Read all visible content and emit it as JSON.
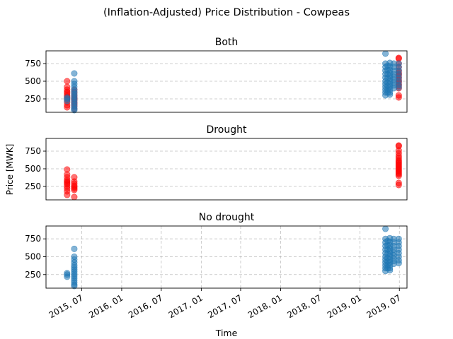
{
  "figure": {
    "title": "(Inflation-Adjusted) Price Distribution - Cowpeas",
    "xlabel": "Time",
    "ylabel": "Price [MWK]"
  },
  "colors": {
    "drought": "#ff0000",
    "no_drought": "#1f77b4",
    "grid": "#b0b0b0"
  },
  "x_ticks": [
    "2015, 07",
    "2016, 01",
    "2016, 07",
    "2017, 01",
    "2017, 07",
    "2018, 01",
    "2018, 07",
    "2019, 01",
    "2019, 07"
  ],
  "y_ticks": [
    "250",
    "500",
    "750"
  ],
  "chart_data": [
    {
      "type": "scatter",
      "title": "Both",
      "xlim": [
        "2015-01-18",
        "2019-08-05"
      ],
      "ylim": [
        60,
        930
      ],
      "grid": {
        "x": false,
        "y": true
      },
      "series": [
        {
          "color": "#ff0000",
          "points": [
            [
              "2015-04-25",
              500
            ],
            [
              "2015-04-25",
              420
            ],
            [
              "2015-04-25",
              380
            ],
            [
              "2015-04-25",
              350
            ],
            [
              "2015-04-25",
              330
            ],
            [
              "2015-04-25",
              300
            ],
            [
              "2015-04-25",
              280
            ],
            [
              "2015-04-25",
              260
            ],
            [
              "2015-04-25",
              240
            ],
            [
              "2015-04-25",
              200
            ],
            [
              "2015-04-25",
              160
            ],
            [
              "2015-04-25",
              130
            ],
            [
              "2015-05-28",
              380
            ],
            [
              "2015-05-28",
              340
            ],
            [
              "2015-05-28",
              300
            ],
            [
              "2015-05-28",
              270
            ],
            [
              "2015-05-28",
              250
            ],
            [
              "2015-05-28",
              230
            ],
            [
              "2015-05-28",
              200
            ],
            [
              "2015-05-28",
              180
            ],
            [
              "2015-05-28",
              150
            ],
            [
              "2015-05-28",
              110
            ],
            [
              "2019-06-28",
              830
            ],
            [
              "2019-06-28",
              820
            ],
            [
              "2019-06-28",
              750
            ],
            [
              "2019-06-28",
              700
            ],
            [
              "2019-06-28",
              650
            ],
            [
              "2019-06-28",
              620
            ],
            [
              "2019-06-28",
              600
            ],
            [
              "2019-06-28",
              580
            ],
            [
              "2019-06-28",
              550
            ],
            [
              "2019-06-28",
              520
            ],
            [
              "2019-06-28",
              500
            ],
            [
              "2019-06-28",
              480
            ],
            [
              "2019-06-28",
              450
            ],
            [
              "2019-06-28",
              430
            ],
            [
              "2019-06-28",
              400
            ],
            [
              "2019-06-28",
              300
            ],
            [
              "2019-06-28",
              270
            ]
          ]
        },
        {
          "color": "#1f77b4",
          "points": [
            [
              "2015-04-25",
              270
            ],
            [
              "2015-04-25",
              250
            ],
            [
              "2015-04-25",
              220
            ],
            [
              "2015-05-28",
              610
            ],
            [
              "2015-05-28",
              500
            ],
            [
              "2015-05-28",
              460
            ],
            [
              "2015-05-28",
              420
            ],
            [
              "2015-05-28",
              380
            ],
            [
              "2015-05-28",
              350
            ],
            [
              "2015-05-28",
              320
            ],
            [
              "2015-05-28",
              290
            ],
            [
              "2015-05-28",
              260
            ],
            [
              "2015-05-28",
              230
            ],
            [
              "2015-05-28",
              200
            ],
            [
              "2015-05-28",
              170
            ],
            [
              "2015-05-28",
              140
            ],
            [
              "2015-05-28",
              110
            ],
            [
              "2015-05-28",
              90
            ],
            [
              "2019-04-28",
              890
            ],
            [
              "2019-04-28",
              750
            ],
            [
              "2019-04-28",
              700
            ],
            [
              "2019-04-28",
              650
            ],
            [
              "2019-04-28",
              600
            ],
            [
              "2019-04-28",
              550
            ],
            [
              "2019-04-28",
              500
            ],
            [
              "2019-04-28",
              460
            ],
            [
              "2019-04-28",
              420
            ],
            [
              "2019-04-28",
              380
            ],
            [
              "2019-04-28",
              340
            ],
            [
              "2019-04-28",
              300
            ],
            [
              "2019-05-08",
              720
            ],
            [
              "2019-05-08",
              660
            ],
            [
              "2019-05-08",
              600
            ],
            [
              "2019-05-08",
              540
            ],
            [
              "2019-05-08",
              480
            ],
            [
              "2019-05-08",
              430
            ],
            [
              "2019-05-08",
              380
            ],
            [
              "2019-05-08",
              340
            ],
            [
              "2019-05-18",
              760
            ],
            [
              "2019-05-18",
              710
            ],
            [
              "2019-05-18",
              660
            ],
            [
              "2019-05-18",
              620
            ],
            [
              "2019-05-18",
              580
            ],
            [
              "2019-05-18",
              540
            ],
            [
              "2019-05-18",
              500
            ],
            [
              "2019-05-18",
              460
            ],
            [
              "2019-05-18",
              420
            ],
            [
              "2019-05-18",
              380
            ],
            [
              "2019-05-18",
              340
            ],
            [
              "2019-05-18",
              310
            ],
            [
              "2019-06-05",
              750
            ],
            [
              "2019-06-05",
              700
            ],
            [
              "2019-06-05",
              650
            ],
            [
              "2019-06-05",
              600
            ],
            [
              "2019-06-05",
              560
            ],
            [
              "2019-06-05",
              520
            ],
            [
              "2019-06-05",
              480
            ],
            [
              "2019-06-05",
              440
            ],
            [
              "2019-06-05",
              400
            ],
            [
              "2019-06-28",
              750
            ],
            [
              "2019-06-28",
              700
            ],
            [
              "2019-06-28",
              650
            ],
            [
              "2019-06-28",
              600
            ],
            [
              "2019-06-28",
              550
            ],
            [
              "2019-06-28",
              500
            ],
            [
              "2019-06-28",
              450
            ],
            [
              "2019-06-28",
              410
            ]
          ]
        }
      ]
    },
    {
      "type": "scatter",
      "title": "Drought",
      "xlim": [
        "2015-01-18",
        "2019-08-05"
      ],
      "ylim": [
        60,
        930
      ],
      "grid": {
        "x": false,
        "y": true
      },
      "series": [
        {
          "color": "#ff0000",
          "points": [
            [
              "2015-04-25",
              490
            ],
            [
              "2015-04-25",
              420
            ],
            [
              "2015-04-25",
              380
            ],
            [
              "2015-04-25",
              340
            ],
            [
              "2015-04-25",
              320
            ],
            [
              "2015-04-25",
              300
            ],
            [
              "2015-04-25",
              280
            ],
            [
              "2015-04-25",
              250
            ],
            [
              "2015-04-25",
              220
            ],
            [
              "2015-04-25",
              180
            ],
            [
              "2015-04-25",
              130
            ],
            [
              "2015-05-28",
              380
            ],
            [
              "2015-05-28",
              320
            ],
            [
              "2015-05-28",
              290
            ],
            [
              "2015-05-28",
              260
            ],
            [
              "2015-05-28",
              240
            ],
            [
              "2015-05-28",
              220
            ],
            [
              "2015-05-28",
              200
            ],
            [
              "2015-05-28",
              100
            ],
            [
              "2019-06-28",
              830
            ],
            [
              "2019-06-28",
              820
            ],
            [
              "2019-06-28",
              760
            ],
            [
              "2019-06-28",
              720
            ],
            [
              "2019-06-28",
              680
            ],
            [
              "2019-06-28",
              650
            ],
            [
              "2019-06-28",
              620
            ],
            [
              "2019-06-28",
              600
            ],
            [
              "2019-06-28",
              580
            ],
            [
              "2019-06-28",
              560
            ],
            [
              "2019-06-28",
              540
            ],
            [
              "2019-06-28",
              520
            ],
            [
              "2019-06-28",
              500
            ],
            [
              "2019-06-28",
              480
            ],
            [
              "2019-06-28",
              460
            ],
            [
              "2019-06-28",
              440
            ],
            [
              "2019-06-28",
              420
            ],
            [
              "2019-06-28",
              400
            ],
            [
              "2019-06-28",
              300
            ],
            [
              "2019-06-28",
              270
            ]
          ]
        }
      ]
    },
    {
      "type": "scatter",
      "title": "No drought",
      "xlim": [
        "2015-01-18",
        "2019-08-05"
      ],
      "ylim": [
        60,
        930
      ],
      "grid": {
        "x": true,
        "y": true
      },
      "series": [
        {
          "color": "#1f77b4",
          "points": [
            [
              "2015-04-25",
              270
            ],
            [
              "2015-04-25",
              250
            ],
            [
              "2015-04-25",
              220
            ],
            [
              "2015-05-28",
              610
            ],
            [
              "2015-05-28",
              500
            ],
            [
              "2015-05-28",
              460
            ],
            [
              "2015-05-28",
              420
            ],
            [
              "2015-05-28",
              380
            ],
            [
              "2015-05-28",
              350
            ],
            [
              "2015-05-28",
              320
            ],
            [
              "2015-05-28",
              290
            ],
            [
              "2015-05-28",
              260
            ],
            [
              "2015-05-28",
              230
            ],
            [
              "2015-05-28",
              200
            ],
            [
              "2015-05-28",
              170
            ],
            [
              "2015-05-28",
              140
            ],
            [
              "2015-05-28",
              110
            ],
            [
              "2015-05-28",
              90
            ],
            [
              "2019-04-28",
              890
            ],
            [
              "2019-04-28",
              750
            ],
            [
              "2019-04-28",
              700
            ],
            [
              "2019-04-28",
              650
            ],
            [
              "2019-04-28",
              600
            ],
            [
              "2019-04-28",
              550
            ],
            [
              "2019-04-28",
              500
            ],
            [
              "2019-04-28",
              460
            ],
            [
              "2019-04-28",
              420
            ],
            [
              "2019-04-28",
              380
            ],
            [
              "2019-04-28",
              340
            ],
            [
              "2019-04-28",
              300
            ],
            [
              "2019-05-08",
              720
            ],
            [
              "2019-05-08",
              660
            ],
            [
              "2019-05-08",
              600
            ],
            [
              "2019-05-08",
              540
            ],
            [
              "2019-05-08",
              480
            ],
            [
              "2019-05-08",
              430
            ],
            [
              "2019-05-08",
              380
            ],
            [
              "2019-05-08",
              340
            ],
            [
              "2019-05-18",
              760
            ],
            [
              "2019-05-18",
              710
            ],
            [
              "2019-05-18",
              660
            ],
            [
              "2019-05-18",
              620
            ],
            [
              "2019-05-18",
              580
            ],
            [
              "2019-05-18",
              540
            ],
            [
              "2019-05-18",
              500
            ],
            [
              "2019-05-18",
              460
            ],
            [
              "2019-05-18",
              420
            ],
            [
              "2019-05-18",
              380
            ],
            [
              "2019-05-18",
              340
            ],
            [
              "2019-05-18",
              310
            ],
            [
              "2019-06-05",
              750
            ],
            [
              "2019-06-05",
              700
            ],
            [
              "2019-06-05",
              650
            ],
            [
              "2019-06-05",
              600
            ],
            [
              "2019-06-05",
              560
            ],
            [
              "2019-06-05",
              520
            ],
            [
              "2019-06-05",
              480
            ],
            [
              "2019-06-05",
              440
            ],
            [
              "2019-06-05",
              400
            ],
            [
              "2019-06-28",
              750
            ],
            [
              "2019-06-28",
              700
            ],
            [
              "2019-06-28",
              650
            ],
            [
              "2019-06-28",
              600
            ],
            [
              "2019-06-28",
              550
            ],
            [
              "2019-06-28",
              500
            ],
            [
              "2019-06-28",
              450
            ],
            [
              "2019-06-28",
              410
            ]
          ]
        }
      ]
    }
  ]
}
